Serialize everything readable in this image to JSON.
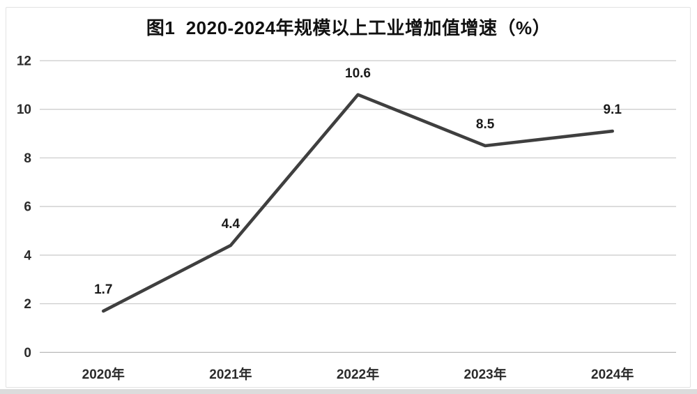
{
  "chart_data": {
    "type": "line",
    "title": "图1  2020-2024年规模以上工业增加值增速（%）",
    "categories": [
      "2020年",
      "2021年",
      "2022年",
      "2023年",
      "2024年"
    ],
    "values": [
      1.7,
      4.4,
      10.6,
      8.5,
      9.1
    ],
    "data_labels": [
      "1.7",
      "4.4",
      "10.6",
      "8.5",
      "9.1"
    ],
    "xlabel": "",
    "ylabel": "",
    "ylim": [
      0,
      12
    ],
    "y_ticks": [
      0,
      2,
      4,
      6,
      8,
      10,
      12
    ],
    "grid": true,
    "legend": "none",
    "colors": {
      "line": "#3f3f3f",
      "gridline": "#c9c9c9",
      "zero_gridline": "#b0b0b0",
      "title_text": "#111111",
      "axis_text": "#2b2b2b",
      "data_label_text": "#1a1a1a",
      "frame_border": "#e2e2e2",
      "bottom_edge": "#dcdcdc",
      "background": "#ffffff"
    }
  }
}
